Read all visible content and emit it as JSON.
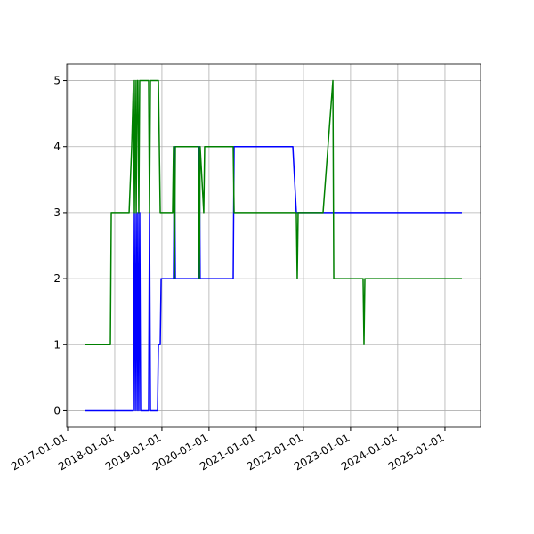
{
  "chart_data": {
    "type": "line",
    "x": [
      "2017-05-12",
      "2017-11-28",
      "2017-12-05",
      "2018-04-22",
      "2018-05-12",
      "2018-05-26",
      "2018-06-02",
      "2018-06-09",
      "2018-06-16",
      "2018-06-23",
      "2018-06-29",
      "2018-07-06",
      "2018-07-13",
      "2018-07-20",
      "2018-09-20",
      "2018-09-27",
      "2018-10-04",
      "2018-11-28",
      "2018-12-05",
      "2018-12-19",
      "2018-12-26",
      "2019-03-25",
      "2019-04-01",
      "2019-04-08",
      "2019-04-15",
      "2019-10-11",
      "2019-10-18",
      "2019-10-24",
      "2019-11-21",
      "2019-11-28",
      "2020-07-06",
      "2020-07-13",
      "2020-07-20",
      "2021-10-11",
      "2021-11-07",
      "2021-11-14",
      "2021-11-21",
      "2022-06-02",
      "2022-08-17",
      "2022-08-24",
      "2023-04-08",
      "2023-04-15",
      "2023-04-22",
      "2025-05-12"
    ],
    "series": [
      {
        "color": "#0000ff",
        "values": [
          0,
          0,
          0,
          0,
          0,
          0,
          3,
          0,
          3,
          0,
          3,
          0,
          3,
          0,
          0,
          3,
          0,
          0,
          1,
          1,
          2,
          2,
          2,
          4,
          2,
          2,
          4,
          2,
          2,
          2,
          2,
          4,
          4,
          4,
          3,
          3,
          3,
          3,
          3,
          3,
          3,
          3,
          3,
          3
        ]
      },
      {
        "color": "#008000",
        "values": [
          1,
          1,
          3,
          3,
          4,
          5,
          3,
          5,
          3,
          5,
          5,
          3,
          5,
          5,
          5,
          3,
          5,
          5,
          5,
          3,
          3,
          3,
          4,
          2,
          4,
          4,
          2,
          4,
          3,
          4,
          4,
          3,
          3,
          3,
          3,
          2,
          3,
          3,
          5,
          2,
          2,
          1,
          2,
          2
        ]
      }
    ],
    "xlim": [
      "2016-12-25",
      "2025-10-04"
    ],
    "xticks": [
      "2017-01-01",
      "2018-01-01",
      "2019-01-01",
      "2020-01-01",
      "2021-01-01",
      "2022-01-01",
      "2023-01-01",
      "2024-01-01",
      "2025-01-01"
    ],
    "ylim": [
      -0.25,
      5.25
    ],
    "yticks": [
      0,
      1,
      2,
      3,
      4,
      5
    ],
    "grid": true
  }
}
